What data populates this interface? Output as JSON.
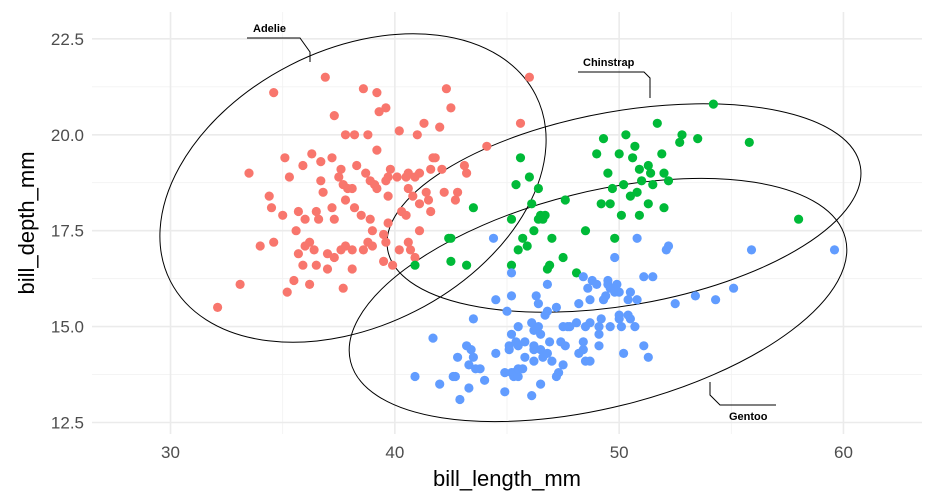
{
  "chart_data": {
    "type": "scatter",
    "xlabel": "bill_length_mm",
    "ylabel": "bill_depth_mm",
    "xlim": [
      26.5,
      63.5
    ],
    "ylim": [
      12.2,
      23.2
    ],
    "x_ticks": [
      30,
      40,
      50,
      60
    ],
    "y_ticks": [
      12.5,
      15.0,
      17.5,
      20.0,
      22.5
    ],
    "x_tick_labels": [
      "30",
      "40",
      "50",
      "60"
    ],
    "y_tick_labels": [
      "12.5",
      "15.0",
      "17.5",
      "20.0",
      "22.5"
    ],
    "grid": true,
    "legend": "none",
    "series": [
      {
        "name": "Adelie",
        "color": "#F8766D",
        "points": [
          [
            32.1,
            15.5
          ],
          [
            33.1,
            16.1
          ],
          [
            33.5,
            19.0
          ],
          [
            34.0,
            17.1
          ],
          [
            34.4,
            18.4
          ],
          [
            34.5,
            18.1
          ],
          [
            34.6,
            21.1
          ],
          [
            34.6,
            17.2
          ],
          [
            35.0,
            17.9
          ],
          [
            35.1,
            19.4
          ],
          [
            35.2,
            15.9
          ],
          [
            35.3,
            18.9
          ],
          [
            35.5,
            16.2
          ],
          [
            35.6,
            17.5
          ],
          [
            35.7,
            16.9
          ],
          [
            35.7,
            18.0
          ],
          [
            35.9,
            16.6
          ],
          [
            35.9,
            19.2
          ],
          [
            36.0,
            17.1
          ],
          [
            36.0,
            17.8
          ],
          [
            36.2,
            16.1
          ],
          [
            36.2,
            17.2
          ],
          [
            36.3,
            19.5
          ],
          [
            36.4,
            17.0
          ],
          [
            36.5,
            16.6
          ],
          [
            36.5,
            18.0
          ],
          [
            36.6,
            17.8
          ],
          [
            36.7,
            18.8
          ],
          [
            36.7,
            19.3
          ],
          [
            36.8,
            18.5
          ],
          [
            36.9,
            21.5
          ],
          [
            37.0,
            16.5
          ],
          [
            37.0,
            16.9
          ],
          [
            37.2,
            18.1
          ],
          [
            37.2,
            19.4
          ],
          [
            37.3,
            16.8
          ],
          [
            37.3,
            17.8
          ],
          [
            37.3,
            20.5
          ],
          [
            37.5,
            18.9
          ],
          [
            37.6,
            17.0
          ],
          [
            37.6,
            19.1
          ],
          [
            37.7,
            16.0
          ],
          [
            37.7,
            18.7
          ],
          [
            37.8,
            17.1
          ],
          [
            37.8,
            18.3
          ],
          [
            37.8,
            20.0
          ],
          [
            37.9,
            18.6
          ],
          [
            38.1,
            16.5
          ],
          [
            38.1,
            17.0
          ],
          [
            38.1,
            18.6
          ],
          [
            38.2,
            18.1
          ],
          [
            38.2,
            20.0
          ],
          [
            38.3,
            19.2
          ],
          [
            38.5,
            17.9
          ],
          [
            38.6,
            17.0
          ],
          [
            38.6,
            21.2
          ],
          [
            38.7,
            19.0
          ],
          [
            38.8,
            17.2
          ],
          [
            38.8,
            20.0
          ],
          [
            38.9,
            17.8
          ],
          [
            38.9,
            18.8
          ],
          [
            39.0,
            17.1
          ],
          [
            39.0,
            17.5
          ],
          [
            39.1,
            18.7
          ],
          [
            39.2,
            18.6
          ],
          [
            39.2,
            19.6
          ],
          [
            39.2,
            21.1
          ],
          [
            39.3,
            20.6
          ],
          [
            39.5,
            16.7
          ],
          [
            39.5,
            17.4
          ],
          [
            39.6,
            17.2
          ],
          [
            39.6,
            18.8
          ],
          [
            39.6,
            20.7
          ],
          [
            39.7,
            17.7
          ],
          [
            39.7,
            18.4
          ],
          [
            39.7,
            18.9
          ],
          [
            39.8,
            19.1
          ],
          [
            39.9,
            16.6
          ],
          [
            40.1,
            18.9
          ],
          [
            40.2,
            17.0
          ],
          [
            40.2,
            20.1
          ],
          [
            40.3,
            18.0
          ],
          [
            40.5,
            17.9
          ],
          [
            40.5,
            18.9
          ],
          [
            40.6,
            17.2
          ],
          [
            40.6,
            18.6
          ],
          [
            40.6,
            19.0
          ],
          [
            40.7,
            17.0
          ],
          [
            40.8,
            18.4
          ],
          [
            40.9,
            16.8
          ],
          [
            40.9,
            18.9
          ],
          [
            41.0,
            20.0
          ],
          [
            41.1,
            17.5
          ],
          [
            41.1,
            18.2
          ],
          [
            41.1,
            19.0
          ],
          [
            41.3,
            20.3
          ],
          [
            41.4,
            18.5
          ],
          [
            41.5,
            18.3
          ],
          [
            41.6,
            18.0
          ],
          [
            41.6,
            19.1
          ],
          [
            41.7,
            19.4
          ],
          [
            41.8,
            19.4
          ],
          [
            42.0,
            20.2
          ],
          [
            42.1,
            19.1
          ],
          [
            42.2,
            18.5
          ],
          [
            42.3,
            21.2
          ],
          [
            42.5,
            20.7
          ],
          [
            42.7,
            18.3
          ],
          [
            42.8,
            18.5
          ],
          [
            43.1,
            19.2
          ],
          [
            43.2,
            19.0
          ],
          [
            44.1,
            19.7
          ],
          [
            45.6,
            20.3
          ],
          [
            46.0,
            21.5
          ]
        ]
      },
      {
        "name": "Chinstrap",
        "color": "#00BA38",
        "points": [
          [
            40.9,
            16.6
          ],
          [
            42.4,
            17.3
          ],
          [
            42.5,
            17.3
          ],
          [
            42.5,
            16.7
          ],
          [
            43.2,
            16.6
          ],
          [
            43.5,
            18.1
          ],
          [
            45.2,
            16.6
          ],
          [
            45.2,
            17.8
          ],
          [
            45.4,
            18.7
          ],
          [
            45.5,
            17.0
          ],
          [
            45.6,
            19.4
          ],
          [
            45.7,
            17.3
          ],
          [
            45.9,
            17.1
          ],
          [
            46.0,
            18.9
          ],
          [
            46.1,
            18.2
          ],
          [
            46.2,
            17.5
          ],
          [
            46.4,
            17.8
          ],
          [
            46.4,
            18.6
          ],
          [
            46.5,
            17.9
          ],
          [
            46.6,
            17.8
          ],
          [
            46.7,
            17.9
          ],
          [
            46.8,
            16.5
          ],
          [
            46.9,
            16.6
          ],
          [
            47.0,
            17.3
          ],
          [
            47.5,
            16.8
          ],
          [
            47.6,
            18.3
          ],
          [
            48.1,
            16.4
          ],
          [
            48.5,
            17.5
          ],
          [
            49.0,
            19.5
          ],
          [
            49.2,
            18.2
          ],
          [
            49.3,
            19.9
          ],
          [
            49.5,
            19.0
          ],
          [
            49.6,
            18.2
          ],
          [
            49.7,
            18.6
          ],
          [
            49.8,
            17.3
          ],
          [
            50.0,
            19.5
          ],
          [
            50.1,
            17.9
          ],
          [
            50.2,
            18.7
          ],
          [
            50.3,
            20.0
          ],
          [
            50.5,
            18.4
          ],
          [
            50.6,
            19.4
          ],
          [
            50.7,
            19.7
          ],
          [
            50.8,
            18.5
          ],
          [
            50.9,
            17.9
          ],
          [
            50.9,
            19.1
          ],
          [
            51.0,
            18.8
          ],
          [
            51.3,
            18.2
          ],
          [
            51.3,
            19.2
          ],
          [
            51.4,
            19.0
          ],
          [
            51.5,
            18.7
          ],
          [
            51.7,
            20.3
          ],
          [
            51.9,
            19.5
          ],
          [
            52.0,
            18.1
          ],
          [
            52.0,
            19.0
          ],
          [
            52.2,
            18.8
          ],
          [
            52.7,
            19.8
          ],
          [
            52.8,
            20.0
          ],
          [
            53.5,
            19.9
          ],
          [
            54.2,
            20.8
          ],
          [
            55.8,
            19.8
          ],
          [
            58.0,
            17.8
          ]
        ]
      },
      {
        "name": "Gentoo",
        "color": "#619CFF",
        "points": [
          [
            40.9,
            13.7
          ],
          [
            41.7,
            14.7
          ],
          [
            42.0,
            13.5
          ],
          [
            42.6,
            13.7
          ],
          [
            42.7,
            13.7
          ],
          [
            42.8,
            14.2
          ],
          [
            42.9,
            13.1
          ],
          [
            43.2,
            14.5
          ],
          [
            43.3,
            13.4
          ],
          [
            43.3,
            14.0
          ],
          [
            43.4,
            14.4
          ],
          [
            43.5,
            14.2
          ],
          [
            43.5,
            15.2
          ],
          [
            43.6,
            13.9
          ],
          [
            43.8,
            13.9
          ],
          [
            44.0,
            13.6
          ],
          [
            44.4,
            17.3
          ],
          [
            44.5,
            14.3
          ],
          [
            44.5,
            15.7
          ],
          [
            44.9,
            13.3
          ],
          [
            44.9,
            13.8
          ],
          [
            45.0,
            15.4
          ],
          [
            45.1,
            14.4
          ],
          [
            45.1,
            14.5
          ],
          [
            45.2,
            13.8
          ],
          [
            45.2,
            14.8
          ],
          [
            45.2,
            15.8
          ],
          [
            45.2,
            16.4
          ],
          [
            45.3,
            13.7
          ],
          [
            45.3,
            13.8
          ],
          [
            45.4,
            14.6
          ],
          [
            45.5,
            13.7
          ],
          [
            45.5,
            13.9
          ],
          [
            45.5,
            14.5
          ],
          [
            45.5,
            15.0
          ],
          [
            45.7,
            13.9
          ],
          [
            45.8,
            14.2
          ],
          [
            45.8,
            14.6
          ],
          [
            46.1,
            13.2
          ],
          [
            46.1,
            15.1
          ],
          [
            46.2,
            14.1
          ],
          [
            46.2,
            14.4
          ],
          [
            46.2,
            14.5
          ],
          [
            46.2,
            14.9
          ],
          [
            46.3,
            15.8
          ],
          [
            46.4,
            15.0
          ],
          [
            46.4,
            15.6
          ],
          [
            46.5,
            13.5
          ],
          [
            46.5,
            14.4
          ],
          [
            46.5,
            14.8
          ],
          [
            46.6,
            14.2
          ],
          [
            46.7,
            15.3
          ],
          [
            46.8,
            14.3
          ],
          [
            46.8,
            15.4
          ],
          [
            46.8,
            16.1
          ],
          [
            46.9,
            14.6
          ],
          [
            47.0,
            14.1
          ],
          [
            47.2,
            13.7
          ],
          [
            47.2,
            15.5
          ],
          [
            47.3,
            13.8
          ],
          [
            47.4,
            14.6
          ],
          [
            47.5,
            14.0
          ],
          [
            47.5,
            15.0
          ],
          [
            47.6,
            14.5
          ],
          [
            47.7,
            15.0
          ],
          [
            47.8,
            15.0
          ],
          [
            48.1,
            15.1
          ],
          [
            48.2,
            14.3
          ],
          [
            48.2,
            15.6
          ],
          [
            48.4,
            14.4
          ],
          [
            48.4,
            14.6
          ],
          [
            48.4,
            16.3
          ],
          [
            48.5,
            14.1
          ],
          [
            48.5,
            15.0
          ],
          [
            48.6,
            16.0
          ],
          [
            48.7,
            14.1
          ],
          [
            48.7,
            15.1
          ],
          [
            48.7,
            15.7
          ],
          [
            48.8,
            16.2
          ],
          [
            49.0,
            16.1
          ],
          [
            49.1,
            14.5
          ],
          [
            49.1,
            14.8
          ],
          [
            49.1,
            15.0
          ],
          [
            49.2,
            15.2
          ],
          [
            49.3,
            15.7
          ],
          [
            49.4,
            15.8
          ],
          [
            49.5,
            16.1
          ],
          [
            49.5,
            16.2
          ],
          [
            49.6,
            15.0
          ],
          [
            49.6,
            16.0
          ],
          [
            49.8,
            15.9
          ],
          [
            49.8,
            16.8
          ],
          [
            49.9,
            16.1
          ],
          [
            50.0,
            15.2
          ],
          [
            50.0,
            15.3
          ],
          [
            50.0,
            15.9
          ],
          [
            50.1,
            15.0
          ],
          [
            50.2,
            14.3
          ],
          [
            50.4,
            15.3
          ],
          [
            50.4,
            15.7
          ],
          [
            50.5,
            15.2
          ],
          [
            50.5,
            15.9
          ],
          [
            50.7,
            15.0
          ],
          [
            50.8,
            15.7
          ],
          [
            50.8,
            17.3
          ],
          [
            51.1,
            14.5
          ],
          [
            51.1,
            16.3
          ],
          [
            51.3,
            14.2
          ],
          [
            51.5,
            16.3
          ],
          [
            52.1,
            17.0
          ],
          [
            52.2,
            17.1
          ],
          [
            52.5,
            15.6
          ],
          [
            53.4,
            15.8
          ],
          [
            54.3,
            15.7
          ],
          [
            55.1,
            16.0
          ],
          [
            55.9,
            17.0
          ],
          [
            59.6,
            17.0
          ]
        ]
      }
    ],
    "ellipses": [
      {
        "name": "Adelie",
        "label": "Adelie",
        "label_anchor": "top-left"
      },
      {
        "name": "Chinstrap",
        "label": "Chinstrap",
        "label_anchor": "top"
      },
      {
        "name": "Gentoo",
        "label": "Gentoo",
        "label_anchor": "bottom-right"
      }
    ]
  }
}
